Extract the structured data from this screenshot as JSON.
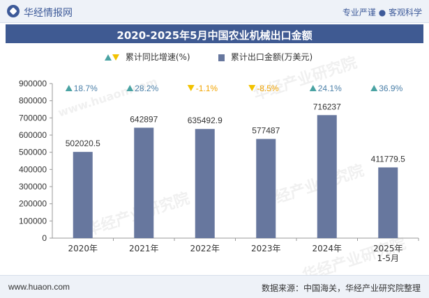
{
  "header": {
    "brand": "华经情报网",
    "slogan": "专业严谨 ● 客观科学"
  },
  "chart_data": {
    "type": "bar",
    "title": "2020-2025年5月中国农业机械出口金额",
    "categories": [
      "2020年",
      "2021年",
      "2022年",
      "2023年",
      "2024年",
      "2025年\n1-5月"
    ],
    "series": [
      {
        "name": "累计出口金额(万美元)",
        "values": [
          502020.5,
          642897,
          635492.9,
          577487,
          716237,
          411779.5
        ],
        "value_labels": [
          "502020.5",
          "642897",
          "635492.9",
          "577487",
          "716237",
          "411779.5"
        ],
        "color": "#67779e"
      },
      {
        "name": "累计同比增速(%)",
        "values": [
          18.7,
          28.2,
          -1.1,
          -8.5,
          24.1,
          36.9
        ],
        "value_labels": [
          "18.7%",
          "28.2%",
          "-1.1%",
          "-8.5%",
          "24.1%",
          "36.9%"
        ],
        "up_color": "#4aa3a3",
        "down_color": "#f2c200",
        "up_text_color": "#4a7fa8",
        "down_text_color": "#f2a400"
      }
    ],
    "ylim": [
      0,
      900000
    ],
    "yticks": [
      "0",
      "100000",
      "200000",
      "300000",
      "400000",
      "500000",
      "600000",
      "700000",
      "800000",
      "900000"
    ],
    "grid": false,
    "legend_position": "top-center"
  },
  "footer": {
    "site": "www.huaon.com",
    "source": "数据来源：中国海关，华经产业研究院整理"
  },
  "watermark": "华经产业研究院",
  "watermark_url": "www.huaon.com"
}
